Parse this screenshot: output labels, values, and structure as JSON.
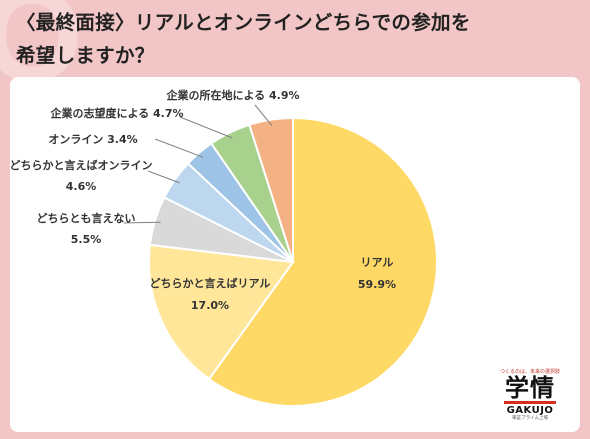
{
  "title_line1": "〈最終面接〉リアルとオンラインどちらでの参加を",
  "title_line2": "希望しますか？",
  "chart_data": {
    "type": "pie",
    "start_angle_deg": 0,
    "direction": "clockwise",
    "slices": [
      {
        "label": "リアル",
        "value": 59.9,
        "display": "59.9%",
        "color": "#ffd966"
      },
      {
        "label": "どちらかと言えばリアル",
        "value": 17.0,
        "display": "17.0%",
        "color": "#ffe699"
      },
      {
        "label": "どちらとも言えない",
        "value": 5.5,
        "display": "5.5%",
        "color": "#d9d9d9"
      },
      {
        "label": "どちらかと言えばオンライン",
        "value": 4.6,
        "display": "4.6%",
        "color": "#bdd7ee"
      },
      {
        "label": "オンライン",
        "value": 3.4,
        "display": "3.4%",
        "color": "#9dc3e6"
      },
      {
        "label": "企業の志望度による",
        "value": 4.7,
        "display": "4.7%",
        "color": "#a9d18e"
      },
      {
        "label": "企業の所在地による",
        "value": 4.9,
        "display": "4.9%",
        "color": "#f4b183"
      }
    ]
  },
  "logo": {
    "tagline": "つくるのは、未来の選択肢",
    "main": "学情",
    "en": "GAKUJO",
    "sub": "東証プライム上場"
  }
}
